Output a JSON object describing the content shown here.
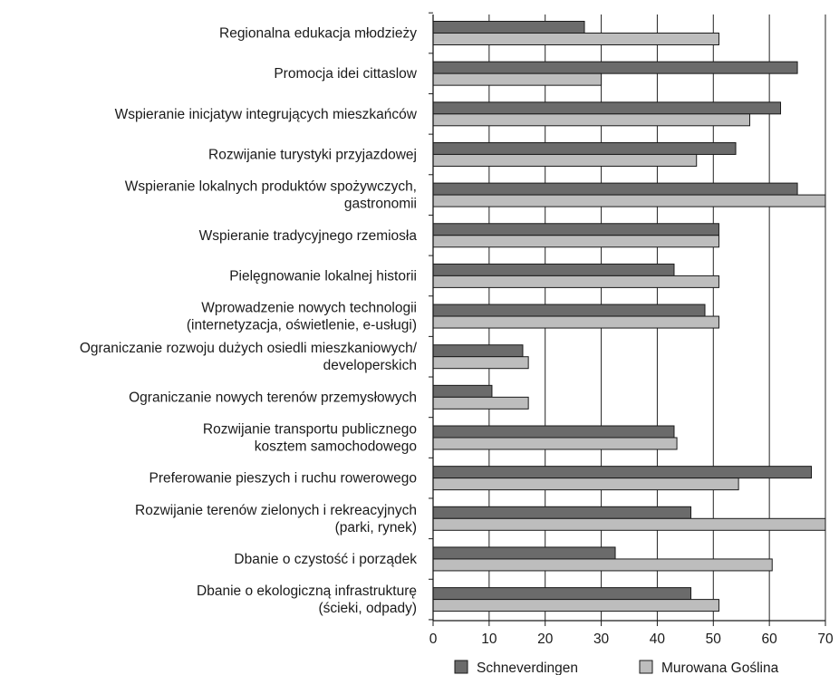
{
  "chart_data": {
    "type": "bar",
    "orientation": "horizontal",
    "title": "",
    "xlabel": "",
    "ylabel": "",
    "xlim": [
      0,
      70
    ],
    "xticks": [
      0,
      10,
      20,
      30,
      40,
      50,
      60,
      70
    ],
    "grid": "vertical",
    "legend": "bottom",
    "categories": [
      [
        "Regionalna edukacja młodzieży"
      ],
      [
        "Promocja idei cittaslow"
      ],
      [
        "Wspieranie inicjatyw integrujących mieszkańców"
      ],
      [
        "Rozwijanie turystyki przyjazdowej"
      ],
      [
        "Wspieranie lokalnych produktów spożywczych,",
        "gastronomii"
      ],
      [
        "Wspieranie tradycyjnego rzemiosła"
      ],
      [
        "Pielęgnowanie lokalnej historii"
      ],
      [
        "Wprowadzenie nowych technologii",
        "(internetyzacja, oświetlenie, e-usługi)"
      ],
      [
        "Ograniczanie rozwoju dużych osiedli mieszkaniowych/",
        "developerskich"
      ],
      [
        "Ograniczanie nowych  terenów przemysłowych"
      ],
      [
        "Rozwijanie transportu publicznego",
        "kosztem samochodowego"
      ],
      [
        "Preferowanie pieszych i ruchu rowerowego"
      ],
      [
        "Rozwijanie terenów zielonych i rekreacyjnych",
        "(parki, rynek)"
      ],
      [
        "Dbanie o czystość i porządek"
      ],
      [
        "Dbanie o ekologiczną infrastrukturę",
        "(ścieki, odpady)"
      ]
    ],
    "series": [
      {
        "name": "Schneverdingen",
        "color": "#6b6b6b",
        "values": [
          27,
          65,
          62,
          54,
          65,
          51,
          43,
          48.5,
          16,
          10.5,
          43,
          67.5,
          46,
          32.5,
          46
        ]
      },
      {
        "name": "Murowana Goślina",
        "color": "#bdbdbd",
        "values": [
          51,
          30,
          56.5,
          47,
          70,
          51,
          51,
          51,
          17,
          17,
          43.5,
          54.5,
          70,
          60.5,
          51
        ]
      }
    ]
  }
}
